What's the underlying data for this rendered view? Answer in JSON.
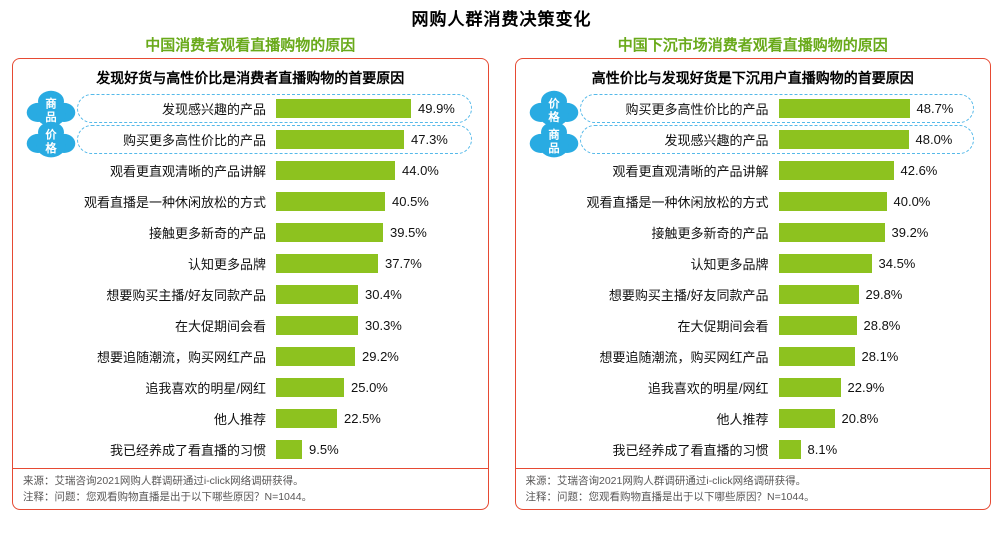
{
  "page_title": "网购人群消费决策变化",
  "colors": {
    "bar_green": "#8dc21f",
    "heading_green": "#69aa1a",
    "panel_border_red": "#e64a33",
    "cloud_blue": "#29abe2",
    "highlight_dashed_blue": "#55b9e9",
    "footer_text": "#595757"
  },
  "panels": [
    {
      "title": "中国消费者观看直播购物的原因",
      "subtitle": "发现好货与高性价比是消费者直播购物的首要原因",
      "clouds": [
        {
          "row": 0,
          "label": "商品"
        },
        {
          "row": 1,
          "label": "价格"
        }
      ],
      "highlight_rows": [
        0,
        1
      ],
      "source": "来源：艾瑞咨询2021网购人群调研通过i-click网络调研获得。",
      "note": "注释：问题：您观看购物直播是出于以下哪些原因？N=1044。"
    },
    {
      "title": "中国下沉市场消费者观看直播购物的原因",
      "subtitle": "高性价比与发现好货是下沉用户直播购物的首要原因",
      "clouds": [
        {
          "row": 0,
          "label": "价格"
        },
        {
          "row": 1,
          "label": "商品"
        }
      ],
      "highlight_rows": [
        0,
        1
      ],
      "source": "来源：艾瑞咨询2021网购人群调研通过i-click网络调研获得。",
      "note": "注释：问题：您观看购物直播是出于以下哪些原因？N=1044。"
    }
  ],
  "chart_data": [
    {
      "type": "bar",
      "orientation": "horizontal",
      "title": "中国消费者观看直播购物的原因",
      "subtitle": "发现好货与高性价比是消费者直播购物的首要原因",
      "categories": [
        "发现感兴趣的产品",
        "购买更多高性价比的产品",
        "观看更直观清晰的产品讲解",
        "观看直播是一种休闲放松的方式",
        "接触更多新奇的产品",
        "认知更多品牌",
        "想要购买主播/好友同款产品",
        "在大促期间会看",
        "想要追随潮流，购买网红产品",
        "追我喜欢的明星/网红",
        "他人推荐",
        "我已经养成了看直播的习惯"
      ],
      "values": [
        49.9,
        47.3,
        44.0,
        40.5,
        39.5,
        37.7,
        30.4,
        30.3,
        29.2,
        25.0,
        22.5,
        9.5
      ],
      "value_labels": [
        "49.9%",
        "47.3%",
        "44.0%",
        "40.5%",
        "39.5%",
        "37.7%",
        "30.4%",
        "30.3%",
        "29.2%",
        "25.0%",
        "22.5%",
        "9.5%"
      ],
      "unit": "%",
      "xlim": [
        0,
        55
      ],
      "legend": "none",
      "grid": false,
      "annotations": [
        {
          "target_category": "发现感兴趣的产品",
          "label": "商品",
          "style": "cloud-badge"
        },
        {
          "target_category": "购买更多高性价比的产品",
          "label": "价格",
          "style": "cloud-badge"
        }
      ]
    },
    {
      "type": "bar",
      "orientation": "horizontal",
      "title": "中国下沉市场消费者观看直播购物的原因",
      "subtitle": "高性价比与发现好货是下沉用户直播购物的首要原因",
      "categories": [
        "购买更多高性价比的产品",
        "发现感兴趣的产品",
        "观看更直观清晰的产品讲解",
        "观看直播是一种休闲放松的方式",
        "接触更多新奇的产品",
        "认知更多品牌",
        "想要购买主播/好友同款产品",
        "在大促期间会看",
        "想要追随潮流，购买网红产品",
        "追我喜欢的明星/网红",
        "他人推荐",
        "我已经养成了看直播的习惯"
      ],
      "values": [
        48.7,
        48.0,
        42.6,
        40.0,
        39.2,
        34.5,
        29.8,
        28.8,
        28.1,
        22.9,
        20.8,
        8.1
      ],
      "value_labels": [
        "48.7%",
        "48.0%",
        "42.6%",
        "40.0%",
        "39.2%",
        "34.5%",
        "29.8%",
        "28.8%",
        "28.1%",
        "22.9%",
        "20.8%",
        "8.1%"
      ],
      "unit": "%",
      "xlim": [
        0,
        55
      ],
      "legend": "none",
      "grid": false,
      "annotations": [
        {
          "target_category": "购买更多高性价比的产品",
          "label": "价格",
          "style": "cloud-badge"
        },
        {
          "target_category": "发现感兴趣的产品",
          "label": "商品",
          "style": "cloud-badge"
        }
      ]
    }
  ]
}
